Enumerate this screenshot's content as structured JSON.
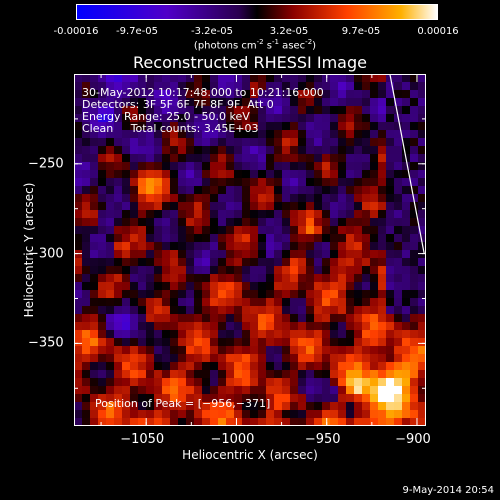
{
  "colorbar": {
    "ticks": [
      "-0.00016",
      "-9.7e-05",
      "-3.2e-05",
      "3.2e-05",
      "9.7e-05",
      "0.00016"
    ],
    "units_prefix": "(photons cm",
    "units_exp1": "-2",
    "units_mid": " s",
    "units_exp2": "-1",
    "units_mid2": " asec",
    "units_exp3": "-2",
    "units_suffix": ")"
  },
  "chart_data": {
    "type": "heatmap",
    "title": "Reconstructed RHESSI Image",
    "xlabel": "Heliocentric X (arcsec)",
    "ylabel": "Heliocentric Y (arcsec)",
    "xlim": [
      -1090,
      -895
    ],
    "ylim": [
      -396,
      -200
    ],
    "xticks": [
      -1050,
      -1000,
      -950,
      -900
    ],
    "xtick_labels": [
      "−1050",
      "−1000",
      "−950",
      "−900"
    ],
    "yticks": [
      -250,
      -300,
      -350
    ],
    "ytick_labels": [
      "−250",
      "−300",
      "−350"
    ],
    "clim": [
      -0.00016,
      0.00016
    ],
    "grid": false,
    "peak": [
      -956,
      -371
    ],
    "limb_line": [
      [
        -915,
        -200
      ],
      [
        -896,
        -300
      ]
    ]
  },
  "info": {
    "time": "30-May-2012 10:17:48.000 to 10:21:16.000",
    "detectors": "Detectors: 3F 5F 6F 7F 8F 9F, Att 0",
    "energy": "Energy Range: 25.0 - 50.0 keV",
    "clean": "Clean     Total counts: 3.45E+03",
    "peak": "Position of Peak = [−956,−371]"
  },
  "timestamp": "9-May-2014 20:54"
}
